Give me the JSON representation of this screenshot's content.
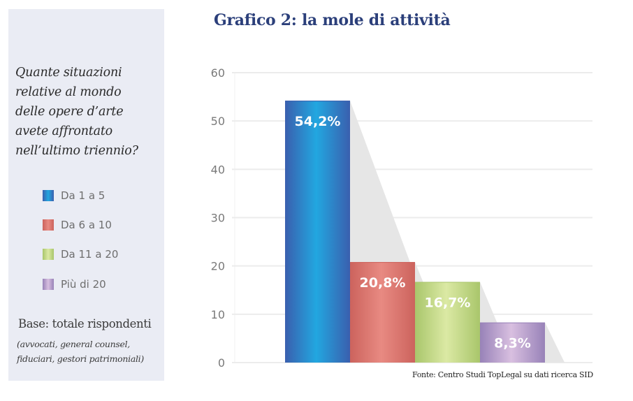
{
  "side_panel": {
    "question_lines": [
      "Quante situazioni",
      "relative al mondo",
      "delle opere d’arte",
      "avete affrontato",
      "nell’ultimo triennio?"
    ],
    "base_title": "Base: totale rispondenti",
    "base_sub_lines": [
      "(avvocati, general counsel,",
      "fiduciari, gestori patrimoniali)"
    ]
  },
  "source": "Fonte: Centro Studi TopLegal su dati ricerca SID",
  "colors": {
    "title": "#2b3f7a",
    "panel_bg": "#eaecf4",
    "grid": "#ececec",
    "shadow": "#e6e6e6"
  },
  "chart_data": {
    "type": "bar",
    "title": "Grafico 2: la mole di attività",
    "xlabel": "",
    "ylabel": "",
    "ylim": [
      0,
      60
    ],
    "yticks": [
      0,
      10,
      20,
      30,
      40,
      50,
      60
    ],
    "ytick_labels": [
      "0",
      "10",
      "20",
      "30",
      "40",
      "50",
      "60"
    ],
    "grid": true,
    "legend_position": "left-panel",
    "categories": [
      "Da 1 a 5",
      "Da 6 a 10",
      "Da 11 a 20",
      "Più di 20"
    ],
    "values": [
      54.2,
      20.8,
      16.7,
      8.3
    ],
    "data_labels": [
      "54,2%",
      "20,8%",
      "16,7%",
      "8,3%"
    ],
    "series_colors": [
      {
        "edge": "#3a5fae",
        "mid": "#22a7e0"
      },
      {
        "edge": "#cc635d",
        "mid": "#e88a82"
      },
      {
        "edge": "#a9c66b",
        "mid": "#dbe9a4"
      },
      {
        "edge": "#9882b8",
        "mid": "#d8bfe0"
      }
    ]
  }
}
